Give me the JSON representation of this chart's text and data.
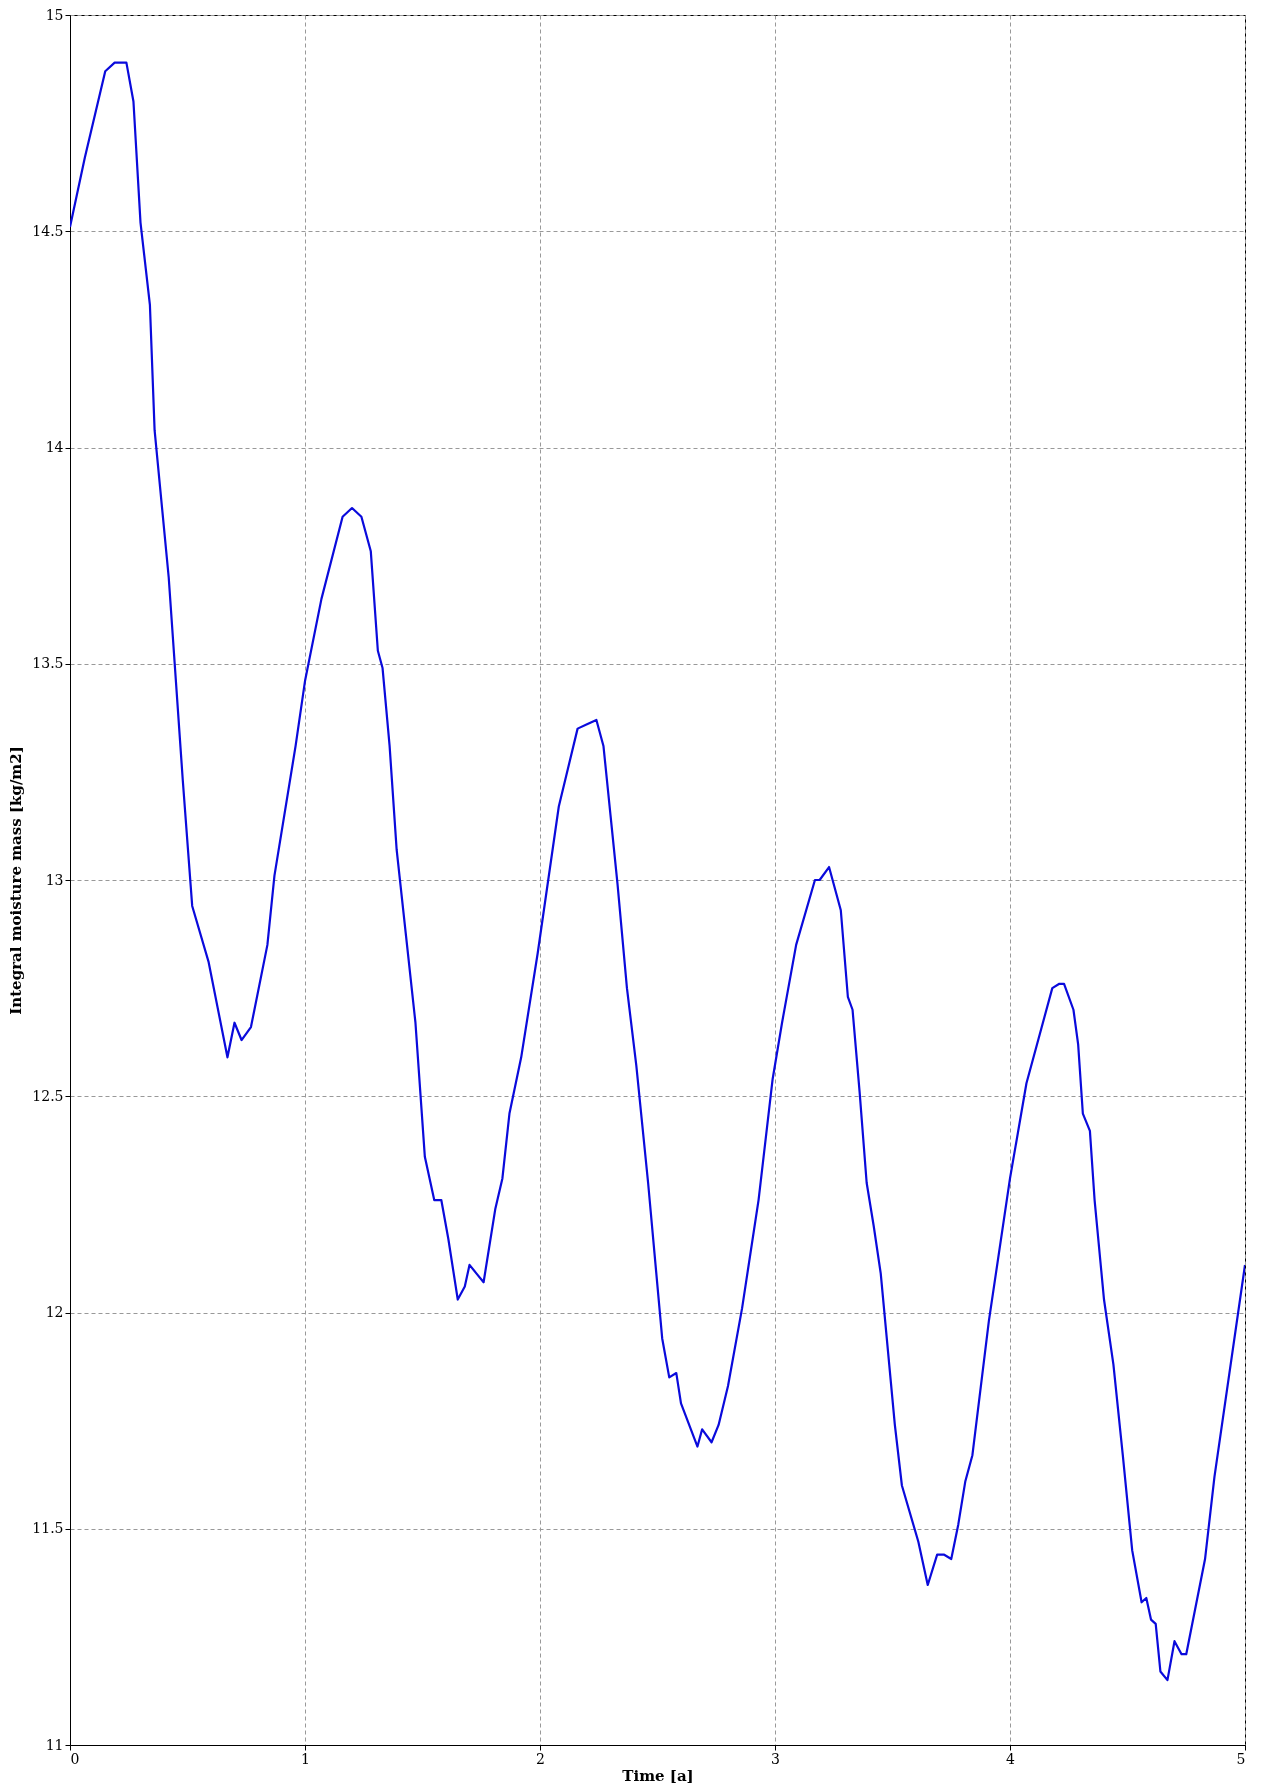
{
  "chart_data": {
    "type": "line",
    "xlabel": "Time [a]",
    "ylabel": "Integral moisture mass [kg/m2]",
    "xlim": [
      0,
      5
    ],
    "ylim": [
      11,
      15
    ],
    "xticks": [
      0,
      1,
      2,
      3,
      4,
      5
    ],
    "yticks": [
      11,
      11.5,
      12,
      12.5,
      13,
      13.5,
      14,
      14.5,
      15
    ],
    "grid": true,
    "series": [
      {
        "color": "#0a0adc",
        "x": [
          0,
          0.063,
          0.15,
          0.19,
          0.24,
          0.27,
          0.3,
          0.34,
          0.36,
          0.42,
          0.48,
          0.52,
          0.59,
          0.67,
          0.7,
          0.73,
          0.77,
          0.84,
          0.87,
          0.96,
          1,
          1.07,
          1.16,
          1.2,
          1.24,
          1.28,
          1.31,
          1.33,
          1.36,
          1.39,
          1.43,
          1.47,
          1.51,
          1.55,
          1.58,
          1.61,
          1.65,
          1.68,
          1.7,
          1.73,
          1.76,
          1.81,
          1.84,
          1.87,
          1.92,
          1.99,
          2.08,
          2.16,
          2.2,
          2.24,
          2.27,
          2.3,
          2.33,
          2.37,
          2.41,
          2.46,
          2.52,
          2.55,
          2.58,
          2.6,
          2.67,
          2.69,
          2.73,
          2.76,
          2.8,
          2.86,
          2.93,
          2.99,
          3.03,
          3.09,
          3.17,
          3.19,
          3.23,
          3.28,
          3.31,
          3.33,
          3.36,
          3.39,
          3.42,
          3.45,
          3.51,
          3.54,
          3.61,
          3.65,
          3.69,
          3.72,
          3.75,
          3.78,
          3.81,
          3.84,
          3.91,
          4,
          4.07,
          4.18,
          4.21,
          4.23,
          4.27,
          4.29,
          4.31,
          4.34,
          4.36,
          4.4,
          4.44,
          4.48,
          4.52,
          4.56,
          4.58,
          4.6,
          4.62,
          4.64,
          4.67,
          4.7,
          4.73,
          4.75,
          4.83,
          4.87,
          5
        ],
        "values": [
          14.51,
          14.67,
          14.87,
          14.89,
          14.89,
          14.8,
          14.52,
          14.33,
          14.04,
          13.7,
          13.23,
          12.94,
          12.81,
          12.59,
          12.67,
          12.63,
          12.66,
          12.85,
          13.01,
          13.31,
          13.46,
          13.65,
          13.84,
          13.86,
          13.84,
          13.76,
          13.53,
          13.49,
          13.31,
          13.07,
          12.87,
          12.67,
          12.36,
          12.26,
          12.26,
          12.17,
          12.03,
          12.06,
          12.11,
          12.09,
          12.07,
          12.24,
          12.31,
          12.46,
          12.59,
          12.83,
          13.17,
          13.35,
          13.36,
          13.37,
          13.31,
          13.15,
          12.99,
          12.75,
          12.57,
          12.3,
          11.94,
          11.85,
          11.86,
          11.79,
          11.69,
          11.73,
          11.7,
          11.74,
          11.83,
          12.01,
          12.26,
          12.54,
          12.67,
          12.85,
          13,
          13,
          13.03,
          12.93,
          12.73,
          12.7,
          12.51,
          12.3,
          12.2,
          12.09,
          11.74,
          11.6,
          11.47,
          11.37,
          11.44,
          11.44,
          11.43,
          11.51,
          11.61,
          11.67,
          11.98,
          12.31,
          12.53,
          12.75,
          12.76,
          12.76,
          12.7,
          12.62,
          12.46,
          12.42,
          12.26,
          12.03,
          11.88,
          11.67,
          11.45,
          11.33,
          11.34,
          11.29,
          11.28,
          11.17,
          11.15,
          11.24,
          11.21,
          11.21,
          11.43,
          11.62,
          12.11
        ]
      }
    ]
  }
}
